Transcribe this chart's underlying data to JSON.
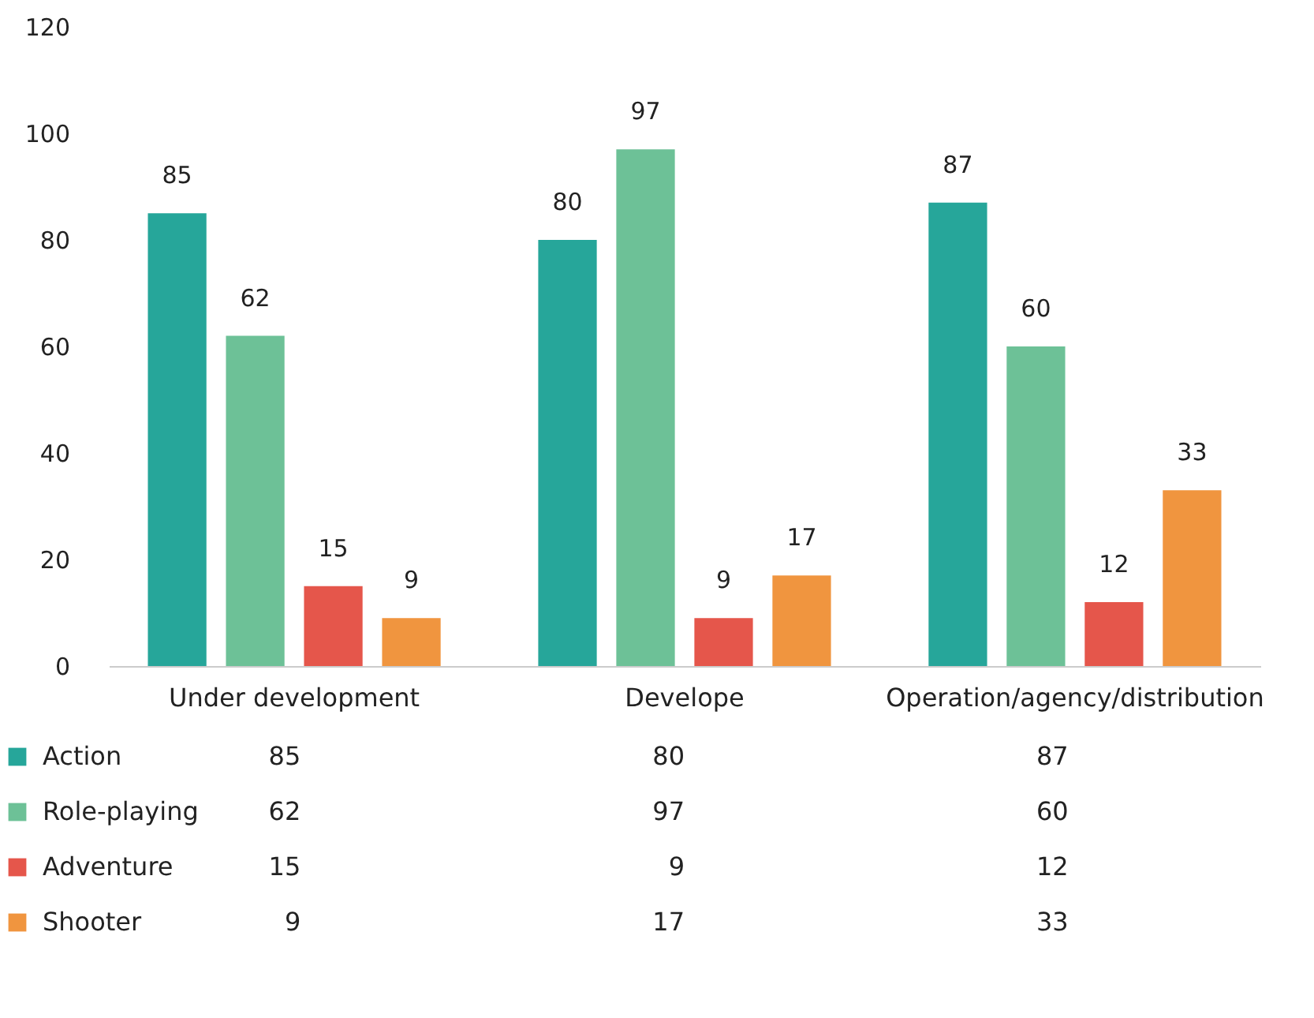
{
  "chart_data": {
    "type": "bar",
    "categories": [
      "Under development",
      "Develope",
      "Operation/agency/distribution"
    ],
    "series": [
      {
        "name": "Action",
        "color": "#26a69a",
        "values": [
          85,
          80,
          87
        ],
        "value_labels": [
          "85",
          "80",
          "87"
        ]
      },
      {
        "name": "Role-playing",
        "color": "#6dc197",
        "values": [
          62,
          97,
          60
        ],
        "value_labels": [
          "62",
          "97",
          "60"
        ]
      },
      {
        "name": "Adventure",
        "color": "#e5564b",
        "values": [
          15,
          9,
          12
        ],
        "value_labels": [
          "15",
          "9",
          "12"
        ]
      },
      {
        "name": "Shooter",
        "color": "#f0953f",
        "values": [
          9,
          17,
          33
        ],
        "value_labels": [
          "9",
          "17",
          "33"
        ]
      }
    ],
    "annotations": [
      "85",
      "80",
      "87",
      "62",
      "97",
      "60",
      "15",
      "9",
      "12",
      "9",
      "17",
      "33"
    ],
    "ylim": [
      0,
      120
    ],
    "yticks": [
      0,
      20,
      40,
      60,
      80,
      100,
      120
    ],
    "grid": false,
    "legend": "bottom"
  }
}
